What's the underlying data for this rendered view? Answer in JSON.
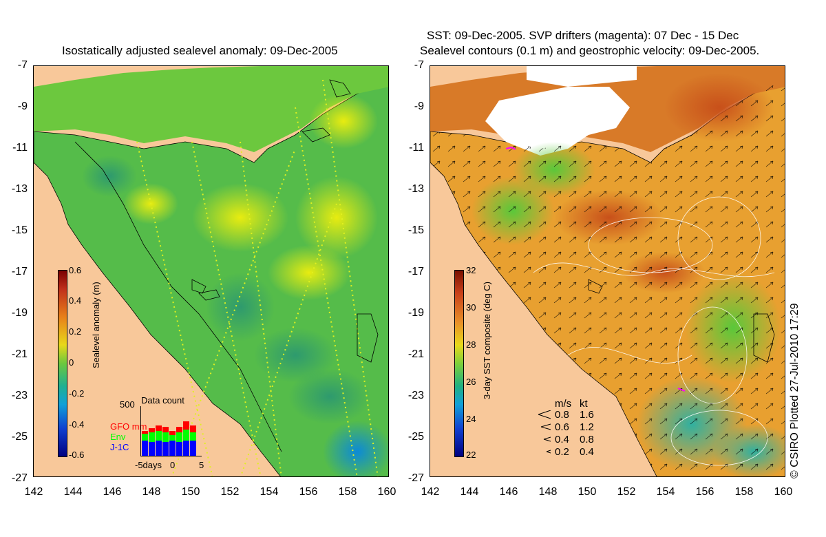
{
  "left_panel": {
    "title": "Isostatically adjusted sealevel anomaly: 09-Dec-2005",
    "y_ticks": [
      "-7",
      "-9",
      "-11",
      "-13",
      "-15",
      "-17",
      "-19",
      "-21",
      "-23",
      "-25",
      "-27"
    ],
    "x_ticks": [
      "142",
      "144",
      "146",
      "148",
      "150",
      "152",
      "154",
      "156",
      "158",
      "160"
    ],
    "colorbar": {
      "title": "Sealevel anomaly (m)",
      "ticks": [
        "0.6",
        "0.4",
        "0.2",
        "0",
        "-0.2",
        "-0.4",
        "-0.6"
      ],
      "range": [
        -0.6,
        0.6
      ]
    },
    "data_count": {
      "title": "Data count",
      "max_label": "500",
      "legend": [
        {
          "label": "GFO mm",
          "color": "#ff0000"
        },
        {
          "label": "Env",
          "color": "#00ff00"
        },
        {
          "label": "J-1C",
          "color": "#0000ff"
        }
      ],
      "x_labels": [
        "-5days",
        "0",
        "5"
      ]
    }
  },
  "right_panel": {
    "title_line1": "SST: 09-Dec-2005. SVP drifters (magenta): 07 Dec - 15 Dec",
    "title_line2": "Sealevel contours (0.1 m) and geostrophic velocity: 09-Dec-2005.",
    "y_ticks": [
      "-7",
      "-9",
      "-11",
      "-13",
      "-15",
      "-17",
      "-19",
      "-21",
      "-23",
      "-25",
      "-27"
    ],
    "x_ticks": [
      "142",
      "144",
      "146",
      "148",
      "150",
      "152",
      "154",
      "156",
      "158",
      "160"
    ],
    "colorbar": {
      "title": "3-day SST composite (deg C)",
      "ticks": [
        "32",
        "30",
        "28",
        "26",
        "24",
        "22"
      ],
      "range": [
        22,
        32
      ]
    },
    "velocity_legend": {
      "header_ms": "m/s",
      "header_kt": "kt",
      "rows": [
        {
          "ms": "0.8",
          "kt": "1.6"
        },
        {
          "ms": "0.6",
          "kt": "1.2"
        },
        {
          "ms": "0.4",
          "kt": "0.8"
        },
        {
          "ms": "0.2",
          "kt": "0.4"
        }
      ]
    }
  },
  "credit": "© CSIRO Plotted 27-Jul-2010 17:29",
  "colors": {
    "land": "#f8c89a",
    "sla_green": "#3fb84a",
    "sla_yellow": "#d6e81a",
    "sst_orange": "#e8a030",
    "sst_green": "#7ed03a"
  }
}
